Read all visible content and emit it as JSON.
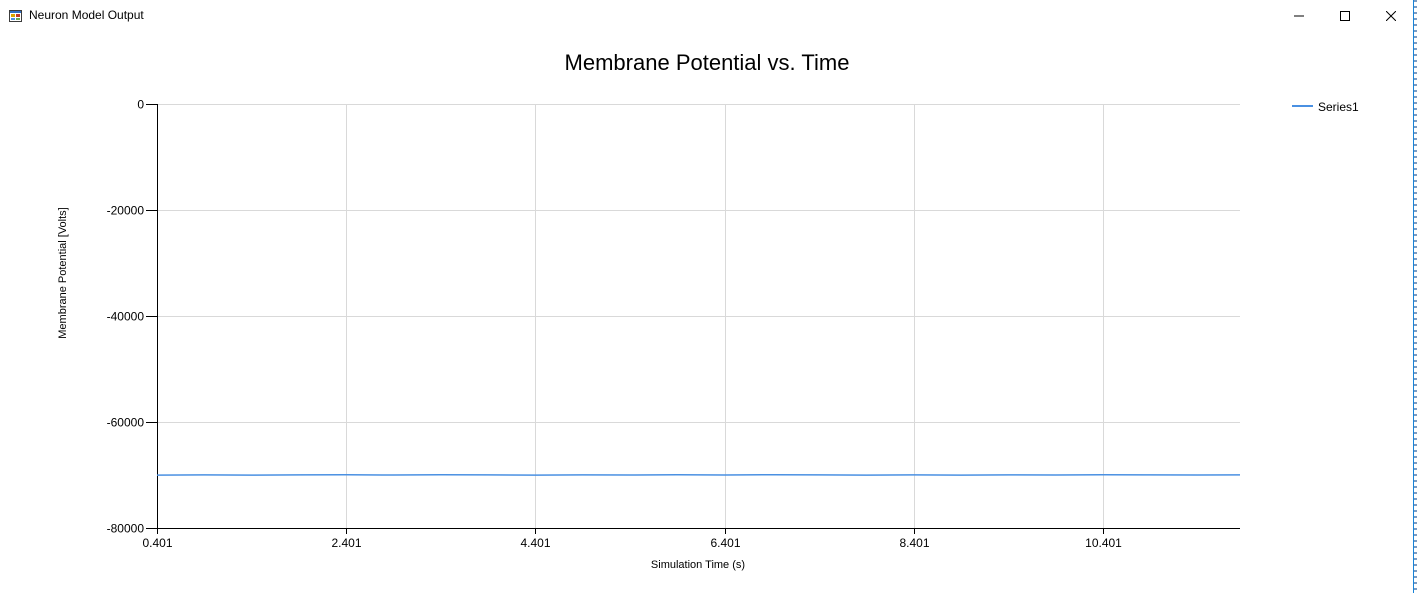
{
  "window": {
    "title": "Neuron Model Output",
    "controls": {
      "minimize_icon": "minimize-icon",
      "maximize_icon": "maximize-icon",
      "close_icon": "close-icon"
    },
    "app_icon": "app-window-icon",
    "border_color": "#1883d7"
  },
  "chart_data": {
    "type": "line",
    "title": "Membrane Potential vs. Time",
    "xlabel": "Simulation Time (s)",
    "ylabel": "Membrane Potential [Volts]",
    "xlim": [
      0.401,
      11.85
    ],
    "ylim": [
      -80000,
      0
    ],
    "x_ticks": [
      0.401,
      2.401,
      4.401,
      6.401,
      8.401,
      10.401
    ],
    "x_tick_labels": [
      "0.401",
      "2.401",
      "4.401",
      "6.401",
      "8.401",
      "10.401"
    ],
    "y_ticks": [
      0,
      -20000,
      -40000,
      -60000,
      -80000
    ],
    "y_tick_labels": [
      "0",
      "-20000",
      "-40000",
      "-60000",
      "-80000"
    ],
    "grid": true,
    "legend_position": "top-right",
    "series": [
      {
        "name": "Series1",
        "color": "#4a90e2",
        "x": [
          0.401,
          0.9,
          1.4,
          1.9,
          2.401,
          2.9,
          3.4,
          3.9,
          4.401,
          4.9,
          5.4,
          5.9,
          6.401,
          6.9,
          7.4,
          7.9,
          8.401,
          8.9,
          9.4,
          9.9,
          10.401,
          10.9,
          11.4,
          11.85
        ],
        "values": [
          -70010,
          -69980,
          -70020,
          -69990,
          -69970,
          -70000,
          -69960,
          -69990,
          -70020,
          -69980,
          -70000,
          -69970,
          -70000,
          -69950,
          -69990,
          -70010,
          -69980,
          -70010,
          -69990,
          -70000,
          -69970,
          -69990,
          -70000,
          -69990
        ]
      }
    ]
  }
}
